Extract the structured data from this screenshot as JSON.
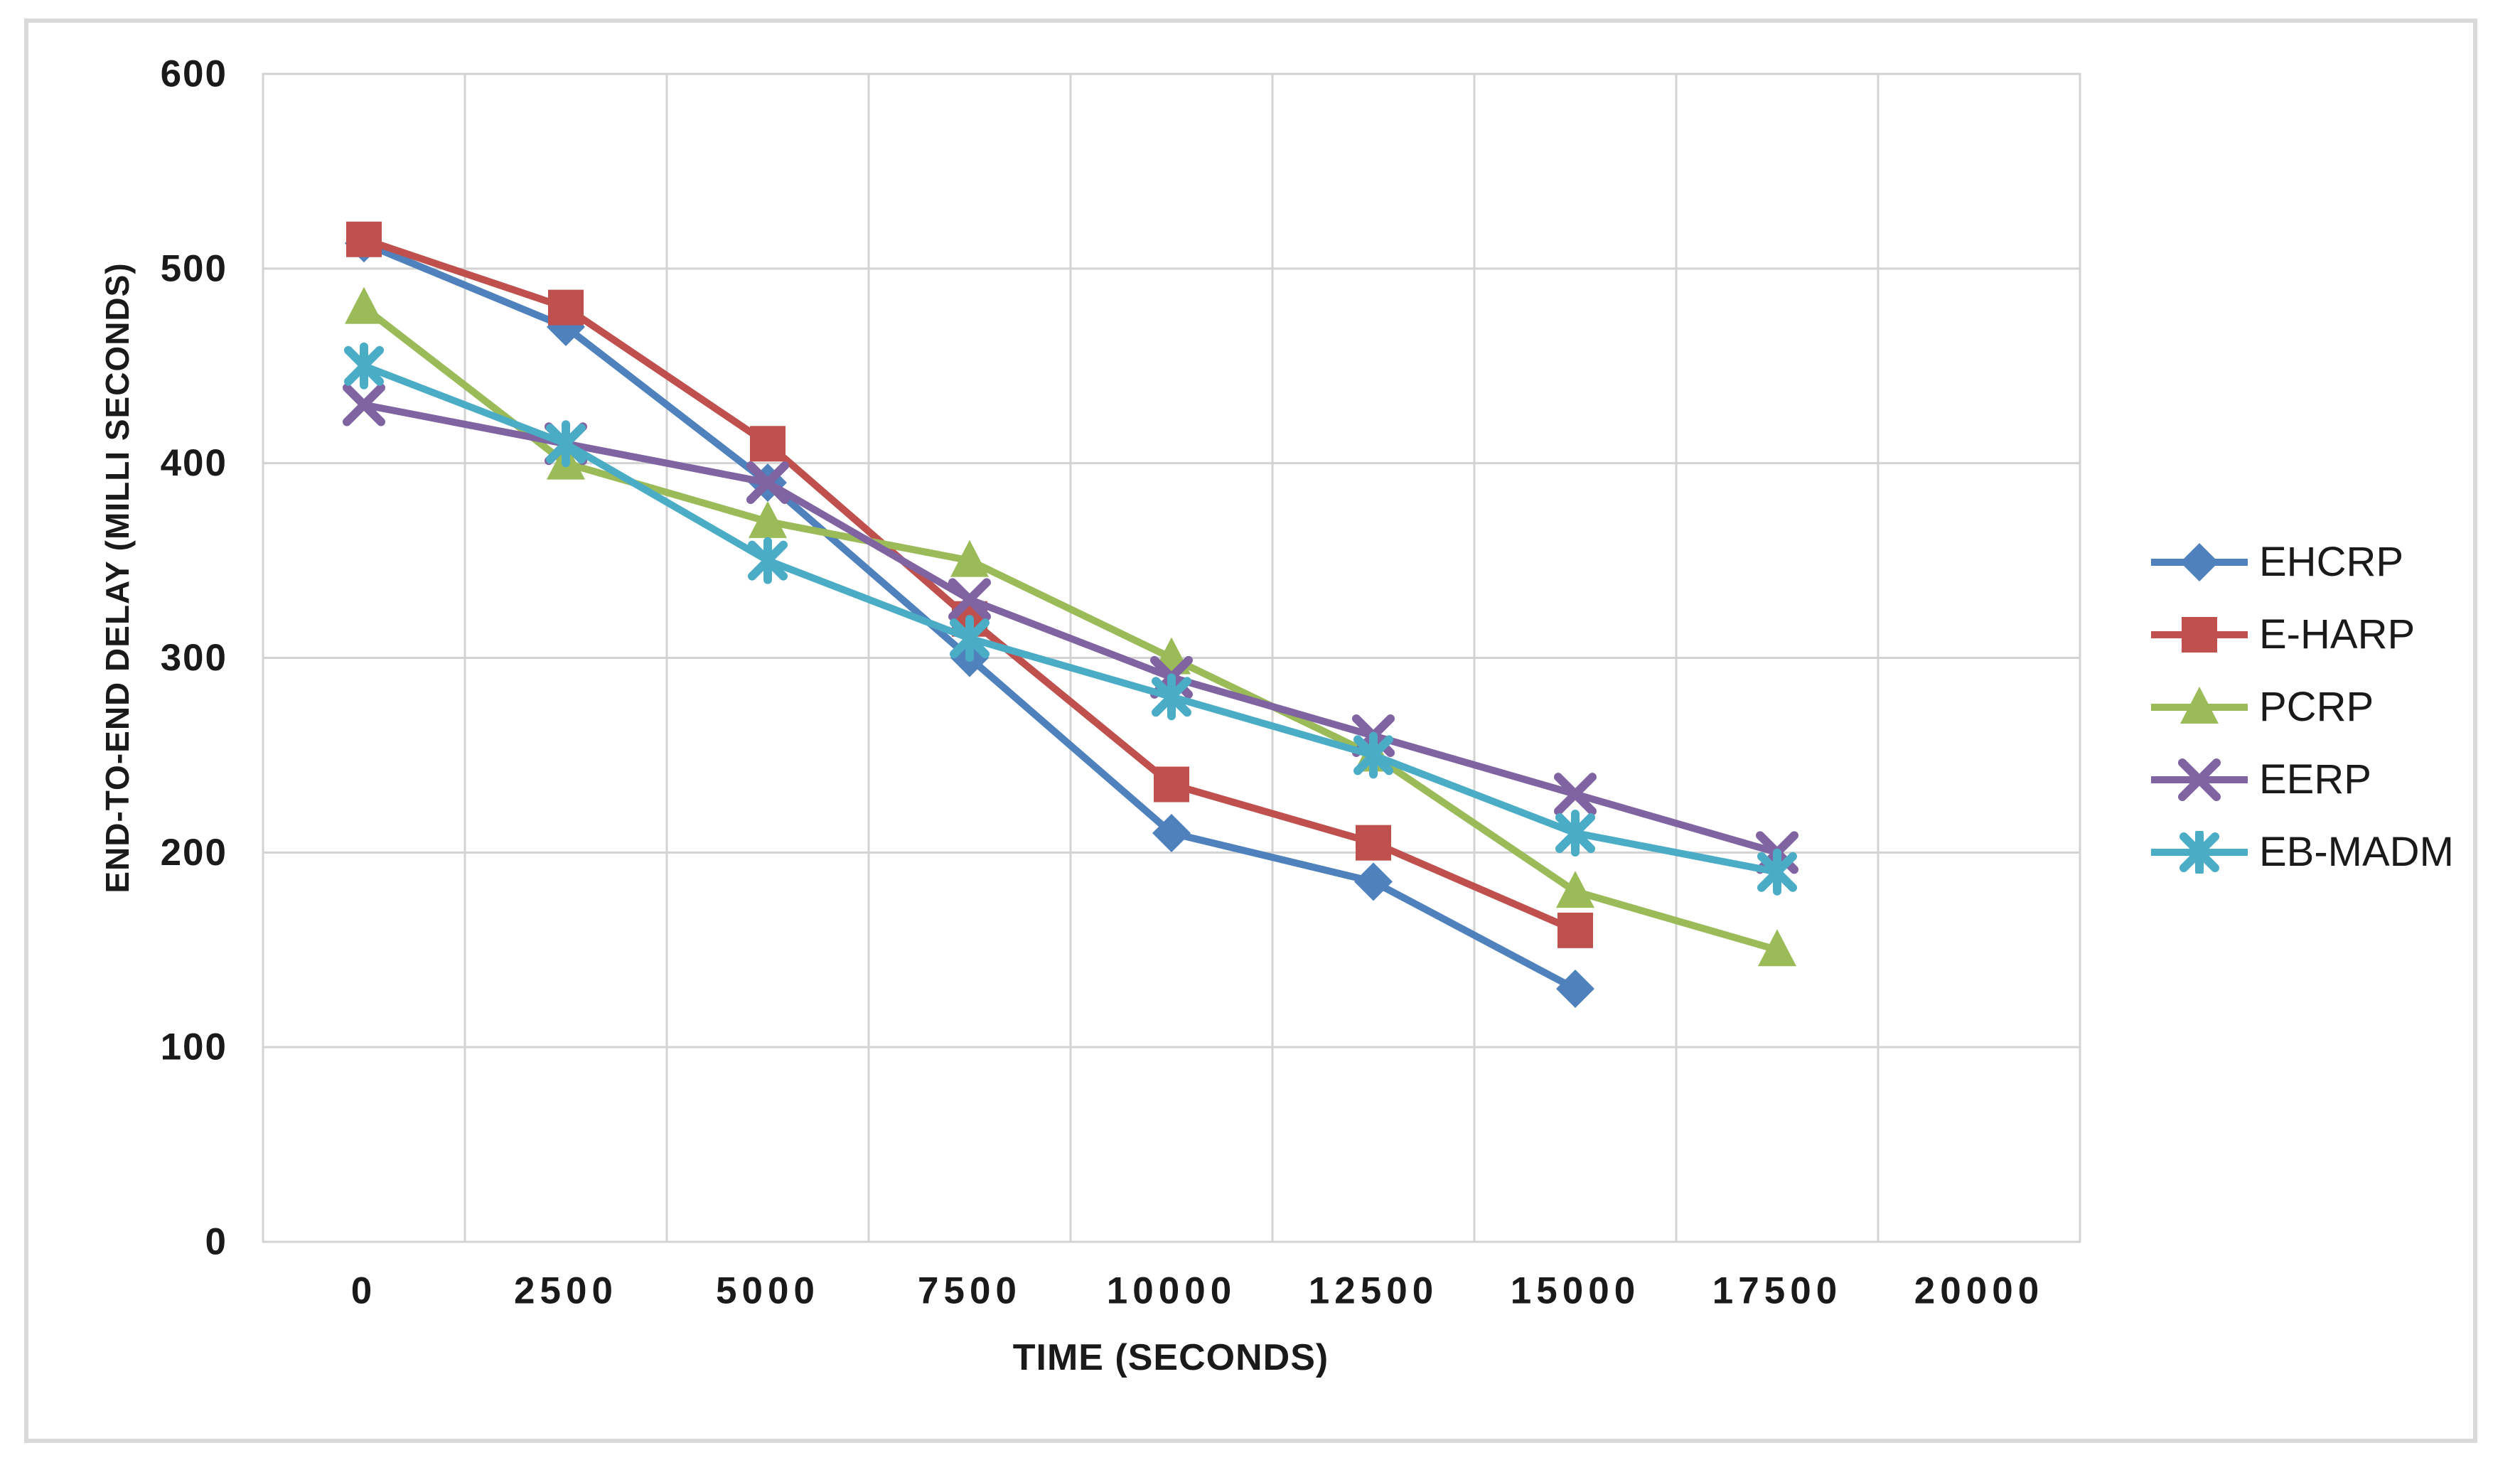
{
  "figure": {
    "background": "#ffffff",
    "border_color": "#d9d9d9",
    "plot_border_color": "#d3d3d3",
    "gridline_color": "#d3d3d3",
    "text_color": "#1a1a1a"
  },
  "chart_data": {
    "type": "line",
    "title": "",
    "xlabel": "TIME (SECONDS)",
    "ylabel": "END-TO-END DELAY (MILLI SECONDS)",
    "categories": [
      0,
      2500,
      5000,
      7500,
      10000,
      12500,
      15000,
      17500,
      20000
    ],
    "x_tick_labels": [
      "0",
      "2500",
      "5000",
      "7500",
      "10000",
      "12500",
      "15000",
      "17500",
      "20000"
    ],
    "yticks": [
      0,
      100,
      200,
      300,
      400,
      500,
      600
    ],
    "ylim": [
      0,
      600
    ],
    "grid": true,
    "legend_position": "right",
    "series": [
      {
        "name": "EHCRP",
        "color": "#4F81BD",
        "marker": "diamond",
        "values": [
          513,
          470,
          390,
          300,
          210,
          185,
          130
        ]
      },
      {
        "name": "E-HARP",
        "color": "#C0504D",
        "marker": "square",
        "values": [
          515,
          480,
          410,
          320,
          235,
          205,
          160
        ]
      },
      {
        "name": "PCRP",
        "color": "#9BBB59",
        "marker": "triangle",
        "values": [
          480,
          400,
          370,
          350,
          300,
          250,
          180,
          150
        ]
      },
      {
        "name": "EERP",
        "color": "#8064A2",
        "marker": "x",
        "values": [
          430,
          410,
          390,
          330,
          290,
          260,
          230,
          200
        ]
      },
      {
        "name": "EB-MADM",
        "color": "#4BACC6",
        "marker": "asterisk",
        "values": [
          450,
          410,
          350,
          310,
          280,
          250,
          210,
          190
        ]
      }
    ]
  }
}
